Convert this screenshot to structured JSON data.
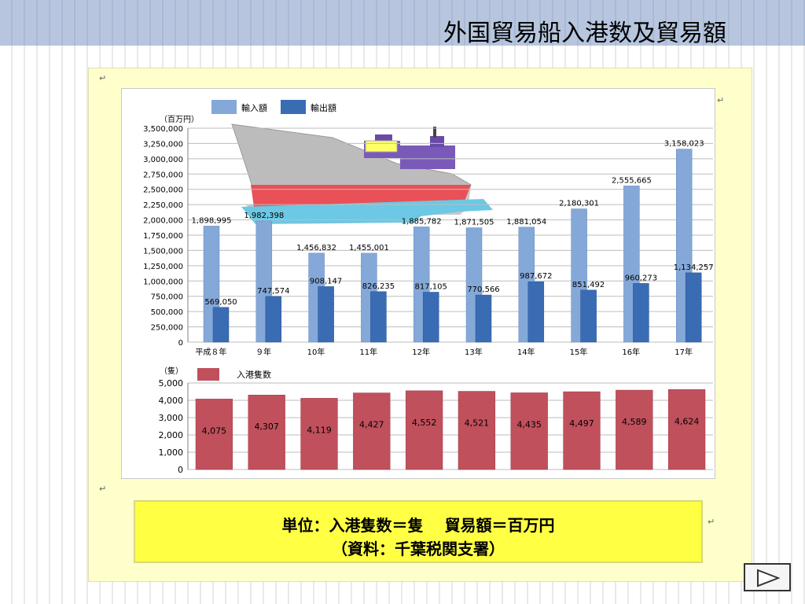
{
  "slide": {
    "title": "外国貿易船入港数及貿易額"
  },
  "note": {
    "line1": "単位：入港隻数＝隻　 貿易額＝百万円",
    "line2": "（資料：千葉税関支署）"
  },
  "colors": {
    "import": "#84a8d8",
    "export": "#3a6cb4",
    "ships": "#c0505c",
    "panel": "#ffffcc",
    "note_box": "#ffff44"
  },
  "chart_data": [
    {
      "type": "bar",
      "unit_label": "（百万円）",
      "categories": [
        "平成８年",
        "９年",
        "10年",
        "11年",
        "12年",
        "13年",
        "14年",
        "15年",
        "16年",
        "17年"
      ],
      "series": [
        {
          "name": "輸入額",
          "values": [
            1898995,
            1982398,
            1456832,
            1455001,
            1885782,
            1871505,
            1881054,
            2180301,
            2555665,
            3158023
          ],
          "labels": [
            "1,898,995",
            "1,982,398",
            "1,456,832",
            "1,455,001",
            "1,885,782",
            "1,871,505",
            "1,881,054",
            "2,180,301",
            "2,555,665",
            "3,158,023"
          ]
        },
        {
          "name": "輸出額",
          "values": [
            569050,
            747574,
            908147,
            826235,
            817105,
            770566,
            987672,
            851492,
            960273,
            1134257
          ],
          "labels": [
            "569,050",
            "747,574",
            "908,147",
            "826,235",
            "817,105",
            "770,566",
            "987,672",
            "851,492",
            "960,273",
            "1,134,257"
          ]
        }
      ],
      "ylim": [
        0,
        3500000
      ],
      "yticks": [
        "0",
        "250,000",
        "500,000",
        "750,000",
        "1,000,000",
        "1,250,000",
        "1,500,000",
        "1,750,000",
        "2,000,000",
        "2,250,000",
        "2,500,000",
        "2,750,000",
        "3,000,000",
        "3,250,000",
        "3,500,000"
      ],
      "grid": true,
      "legend": "top-left"
    },
    {
      "type": "bar",
      "unit_label": "（隻）",
      "series": [
        {
          "name": "入港隻数",
          "values": [
            4075,
            4307,
            4119,
            4427,
            4552,
            4521,
            4435,
            4497,
            4589,
            4624
          ],
          "labels": [
            "4,075",
            "4,307",
            "4,119",
            "4,427",
            "4,552",
            "4,521",
            "4,435",
            "4,497",
            "4,589",
            "4,624"
          ]
        }
      ],
      "ylim": [
        0,
        5000
      ],
      "yticks": [
        "0",
        "1,000",
        "2,000",
        "3,000",
        "4,000",
        "5,000"
      ],
      "grid": true,
      "legend": "top-left"
    }
  ],
  "nav": {
    "icon": "play-triangle-icon"
  }
}
